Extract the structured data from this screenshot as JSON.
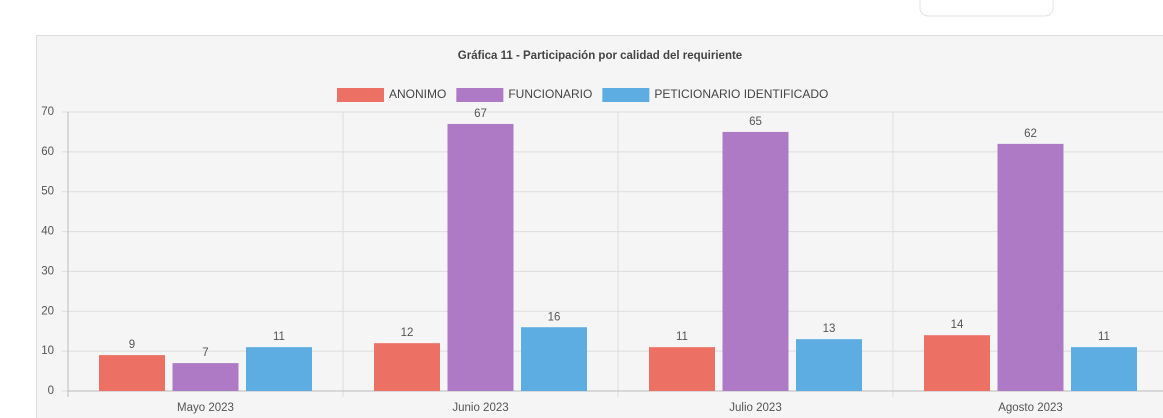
{
  "chart_data": {
    "type": "bar",
    "title": "Gráfica 11 - Participación por calidad del requiriente",
    "categories": [
      "Mayo 2023",
      "Junio 2023",
      "Julio 2023",
      "Agosto 2023"
    ],
    "series": [
      {
        "name": "ANONIMO",
        "color": "#ec7063",
        "values": [
          9,
          12,
          11,
          14
        ]
      },
      {
        "name": "FUNCIONARIO",
        "color": "#af7ac5",
        "values": [
          7,
          67,
          65,
          62
        ]
      },
      {
        "name": "PETICIONARIO IDENTIFICADO",
        "color": "#5dade2",
        "values": [
          11,
          16,
          13,
          11
        ]
      }
    ],
    "ylim": [
      0,
      70
    ],
    "yticks": [
      0,
      10,
      20,
      30,
      40,
      50,
      60,
      70
    ],
    "grid": true
  }
}
